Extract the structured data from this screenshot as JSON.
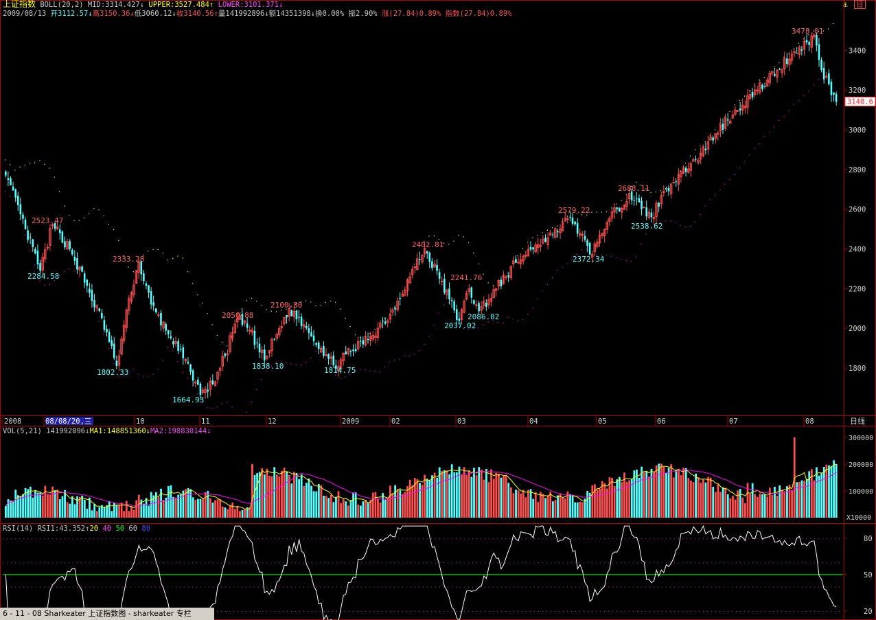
{
  "header": {
    "index_name": "上证指数",
    "indicator": "BOLL(20,2)",
    "mid": "MID:3314.427",
    "upper": "UPPER:3527.484",
    "lower": "LOWER:3101.371",
    "date": "2009/08/13",
    "open": "开3112.57",
    "high": "高3150.36",
    "low": "低3060.12",
    "close": "收3140.56",
    "volume": "量141992896",
    "amount": "额14351398",
    "turnover": "换0.00%",
    "amplitude": "振2.90%",
    "change": "涨(27.84)0.89%",
    "index_change": "指数(27.84)0.89%"
  },
  "corner": {
    "label": "日"
  },
  "time_axis": {
    "labels": [
      "2008",
      "08/08/20,三",
      "10",
      "11",
      "12",
      "2009",
      "02",
      "03",
      "04",
      "05",
      "06",
      "07",
      "08"
    ],
    "period_label": "日线"
  },
  "price_axis": {
    "ticks": [
      3400,
      3200,
      3000,
      2800,
      2600,
      2400,
      2200,
      2000,
      1800
    ],
    "current_value": "3140.6"
  },
  "volume_panel": {
    "header": [
      "VOL(5,21)",
      "141992896",
      "MA1:148851360",
      "MA2:198830144"
    ],
    "ticks": [
      "300000",
      "200000",
      "100000"
    ],
    "unit": "X10000"
  },
  "rsi_panel": {
    "header": [
      "RSI(14)",
      "RSI1:43.352",
      "20",
      "40",
      "50",
      "60",
      "80"
    ],
    "ticks": [
      "80",
      "50",
      "20"
    ]
  },
  "caption": "6 - 11 - 08 Sharkeater 上证指数图 - sharkeater 专栏",
  "colors": {
    "up": "#ff5050",
    "down": "#54ffff",
    "ma1": "#ffff00",
    "ma2": "#ff00ff",
    "upper_band": "#ffff80",
    "lower_band": "#ff00ff",
    "rsi": "#ffffff",
    "rsi_50": "#00ff00",
    "axis": "#b00000"
  },
  "chart_data": {
    "type": "candlestick",
    "title": "上证指数",
    "x_range": [
      "2008/07/01",
      "2009/08/13"
    ],
    "y_range": [
      1620,
      3540
    ],
    "anchors": [
      {
        "i": 0,
        "c": 2770
      },
      {
        "i": 8,
        "c": 2500
      },
      {
        "i": 14,
        "c": 2290
      },
      {
        "i": 19,
        "c": 2523
      },
      {
        "i": 26,
        "c": 2400
      },
      {
        "i": 34,
        "c": 2180
      },
      {
        "i": 41,
        "c": 1980
      },
      {
        "i": 45,
        "c": 1810
      },
      {
        "i": 50,
        "c": 2150
      },
      {
        "i": 54,
        "c": 2333
      },
      {
        "i": 59,
        "c": 2120
      },
      {
        "i": 67,
        "c": 1950
      },
      {
        "i": 75,
        "c": 1780
      },
      {
        "i": 79,
        "c": 1664
      },
      {
        "i": 84,
        "c": 1720
      },
      {
        "i": 89,
        "c": 1860
      },
      {
        "i": 94,
        "c": 2050
      },
      {
        "i": 99,
        "c": 1990
      },
      {
        "i": 105,
        "c": 1838
      },
      {
        "i": 111,
        "c": 2000
      },
      {
        "i": 115,
        "c": 2100
      },
      {
        "i": 122,
        "c": 2000
      },
      {
        "i": 128,
        "c": 1900
      },
      {
        "i": 133,
        "c": 1814
      },
      {
        "i": 140,
        "c": 1880
      },
      {
        "i": 148,
        "c": 1960
      },
      {
        "i": 156,
        "c": 2070
      },
      {
        "i": 164,
        "c": 2260
      },
      {
        "i": 170,
        "c": 2402
      },
      {
        "i": 176,
        "c": 2250
      },
      {
        "i": 184,
        "c": 2037
      },
      {
        "i": 188,
        "c": 2200
      },
      {
        "i": 192,
        "c": 2086
      },
      {
        "i": 199,
        "c": 2200
      },
      {
        "i": 207,
        "c": 2330
      },
      {
        "i": 215,
        "c": 2420
      },
      {
        "i": 222,
        "c": 2470
      },
      {
        "i": 229,
        "c": 2560
      },
      {
        "i": 233,
        "c": 2480
      },
      {
        "i": 237,
        "c": 2372
      },
      {
        "i": 242,
        "c": 2480
      },
      {
        "i": 248,
        "c": 2600
      },
      {
        "i": 253,
        "c": 2680
      },
      {
        "i": 258,
        "c": 2600
      },
      {
        "i": 262,
        "c": 2560
      },
      {
        "i": 268,
        "c": 2700
      },
      {
        "i": 274,
        "c": 2790
      },
      {
        "i": 280,
        "c": 2850
      },
      {
        "i": 288,
        "c": 2980
      },
      {
        "i": 296,
        "c": 3100
      },
      {
        "i": 305,
        "c": 3200
      },
      {
        "i": 313,
        "c": 3300
      },
      {
        "i": 319,
        "c": 3380
      },
      {
        "i": 325,
        "c": 3440
      },
      {
        "i": 328,
        "c": 3478
      },
      {
        "i": 331,
        "c": 3300
      },
      {
        "i": 334,
        "c": 3230
      },
      {
        "i": 337,
        "c": 3140
      }
    ],
    "annotations": [
      {
        "label": "2523.47",
        "type": "high"
      },
      {
        "label": "2284.58",
        "type": "low"
      },
      {
        "label": "2333.28",
        "type": "high"
      },
      {
        "label": "1802.33",
        "type": "low"
      },
      {
        "label": "1664.93",
        "type": "low"
      },
      {
        "label": "2050.88",
        "type": "high"
      },
      {
        "label": "1838.10",
        "type": "low"
      },
      {
        "label": "2100.80",
        "type": "high"
      },
      {
        "label": "1814.75",
        "type": "low"
      },
      {
        "label": "2402.81",
        "type": "high"
      },
      {
        "label": "2037.02",
        "type": "low"
      },
      {
        "label": "2241.76",
        "type": "high"
      },
      {
        "label": "2086.02",
        "type": "low"
      },
      {
        "label": "2579.22",
        "type": "high"
      },
      {
        "label": "2372.34",
        "type": "low"
      },
      {
        "label": "2688.11",
        "type": "high"
      },
      {
        "label": "2538.62",
        "type": "low"
      },
      {
        "label": "3478.01",
        "type": "high"
      }
    ],
    "rsi_levels": [
      20,
      50,
      80
    ]
  }
}
